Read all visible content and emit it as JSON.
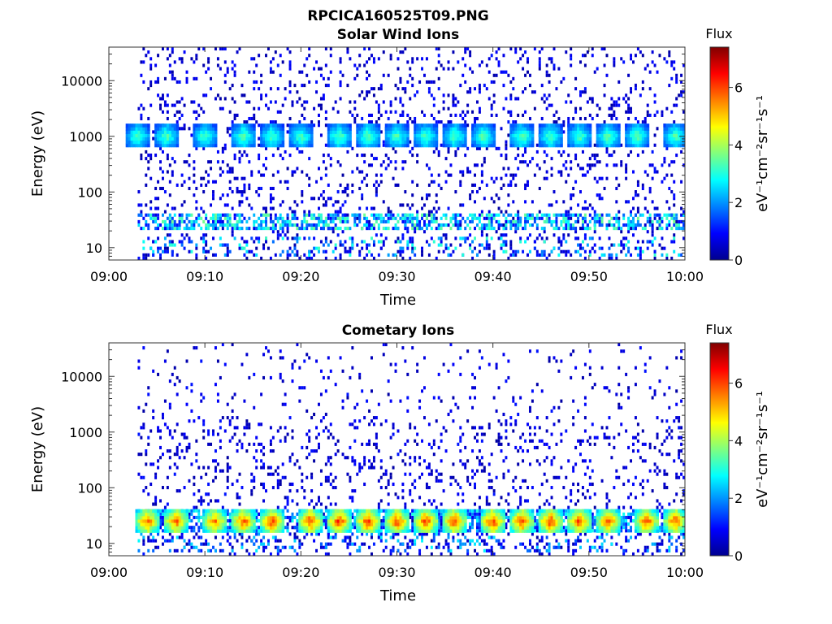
{
  "figure": {
    "filename": "RPCICA160525T09.PNG"
  },
  "chart_data": [
    {
      "type": "heatmap",
      "title": "Solar Wind Ions",
      "xlabel": "Time",
      "ylabel": "Energy (eV)",
      "x_ticks": [
        "09:00",
        "09:10",
        "09:20",
        "09:30",
        "09:40",
        "09:50",
        "10:00"
      ],
      "xlim": [
        "09:00",
        "10:00"
      ],
      "y_scale": "log",
      "ylim": [
        6,
        40000
      ],
      "y_ticks": [
        "10",
        "100",
        "1000",
        "10000"
      ],
      "colorbar": {
        "label": "Flux",
        "unit": "eV⁻¹cm⁻²sr⁻¹s⁻¹",
        "range": [
          0,
          7.4
        ],
        "ticks": [
          "0",
          "2",
          "4",
          "6"
        ],
        "colormap": "jet"
      },
      "data_start": "09:03",
      "bursts": [
        {
          "time": "09:03",
          "energy_eV": 1000,
          "flux": 3.5
        },
        {
          "time": "09:06",
          "energy_eV": 1000,
          "flux": 3.5
        },
        {
          "time": "09:10",
          "energy_eV": 1000,
          "flux": 3.5
        },
        {
          "time": "09:14",
          "energy_eV": 1000,
          "flux": 3.6
        },
        {
          "time": "09:17",
          "energy_eV": 1000,
          "flux": 3.5
        },
        {
          "time": "09:20",
          "energy_eV": 1000,
          "flux": 3.5
        },
        {
          "time": "09:24",
          "energy_eV": 1000,
          "flux": 3.6
        },
        {
          "time": "09:27",
          "energy_eV": 1000,
          "flux": 3.6
        },
        {
          "time": "09:30",
          "energy_eV": 1000,
          "flux": 3.5
        },
        {
          "time": "09:33",
          "energy_eV": 1000,
          "flux": 3.5
        },
        {
          "time": "09:36",
          "energy_eV": 1000,
          "flux": 3.5
        },
        {
          "time": "09:39",
          "energy_eV": 1000,
          "flux": 3.5
        },
        {
          "time": "09:43",
          "energy_eV": 1000,
          "flux": 3.6
        },
        {
          "time": "09:46",
          "energy_eV": 1000,
          "flux": 3.5
        },
        {
          "time": "09:49",
          "energy_eV": 1000,
          "flux": 3.5
        },
        {
          "time": "09:52",
          "energy_eV": 1000,
          "flux": 3.6
        },
        {
          "time": "09:55",
          "energy_eV": 1000,
          "flux": 3.6
        },
        {
          "time": "09:59",
          "energy_eV": 1000,
          "flux": 3.5
        }
      ],
      "low_energy_band": {
        "energy_eV": [
          20,
          40
        ],
        "flux": 3.0
      },
      "background_flux": 0.6
    },
    {
      "type": "heatmap",
      "title": "Cometary Ions",
      "xlabel": "Time",
      "ylabel": "Energy (eV)",
      "x_ticks": [
        "09:00",
        "09:10",
        "09:20",
        "09:30",
        "09:40",
        "09:50",
        "10:00"
      ],
      "xlim": [
        "09:00",
        "10:00"
      ],
      "y_scale": "log",
      "ylim": [
        6,
        40000
      ],
      "y_ticks": [
        "10",
        "100",
        "1000",
        "10000"
      ],
      "colorbar": {
        "label": "Flux",
        "unit": "eV⁻¹cm⁻²sr⁻¹s⁻¹",
        "range": [
          0,
          7.4
        ],
        "ticks": [
          "0",
          "2",
          "4",
          "6"
        ],
        "colormap": "jet"
      },
      "data_start": "09:03",
      "bursts": [
        {
          "time": "09:04",
          "energy_eV": 25,
          "flux": 6.0
        },
        {
          "time": "09:07",
          "energy_eV": 25,
          "flux": 6.0
        },
        {
          "time": "09:11",
          "energy_eV": 25,
          "flux": 5.8
        },
        {
          "time": "09:14",
          "energy_eV": 25,
          "flux": 6.1
        },
        {
          "time": "09:17",
          "energy_eV": 25,
          "flux": 6.2
        },
        {
          "time": "09:21",
          "energy_eV": 25,
          "flux": 6.2
        },
        {
          "time": "09:24",
          "energy_eV": 25,
          "flux": 6.2
        },
        {
          "time": "09:27",
          "energy_eV": 25,
          "flux": 6.2
        },
        {
          "time": "09:30",
          "energy_eV": 25,
          "flux": 6.2
        },
        {
          "time": "09:33",
          "energy_eV": 25,
          "flux": 6.2
        },
        {
          "time": "09:36",
          "energy_eV": 25,
          "flux": 6.2
        },
        {
          "time": "09:40",
          "energy_eV": 25,
          "flux": 6.3
        },
        {
          "time": "09:43",
          "energy_eV": 25,
          "flux": 6.2
        },
        {
          "time": "09:46",
          "energy_eV": 25,
          "flux": 6.2
        },
        {
          "time": "09:49",
          "energy_eV": 25,
          "flux": 6.2
        },
        {
          "time": "09:52",
          "energy_eV": 25,
          "flux": 6.1
        },
        {
          "time": "09:56",
          "energy_eV": 25,
          "flux": 6.1
        },
        {
          "time": "09:59",
          "energy_eV": 25,
          "flux": 6.0
        }
      ],
      "low_energy_band": {
        "energy_eV": [
          15,
          40
        ],
        "flux": 2.5
      },
      "background_flux": 0.6
    }
  ]
}
